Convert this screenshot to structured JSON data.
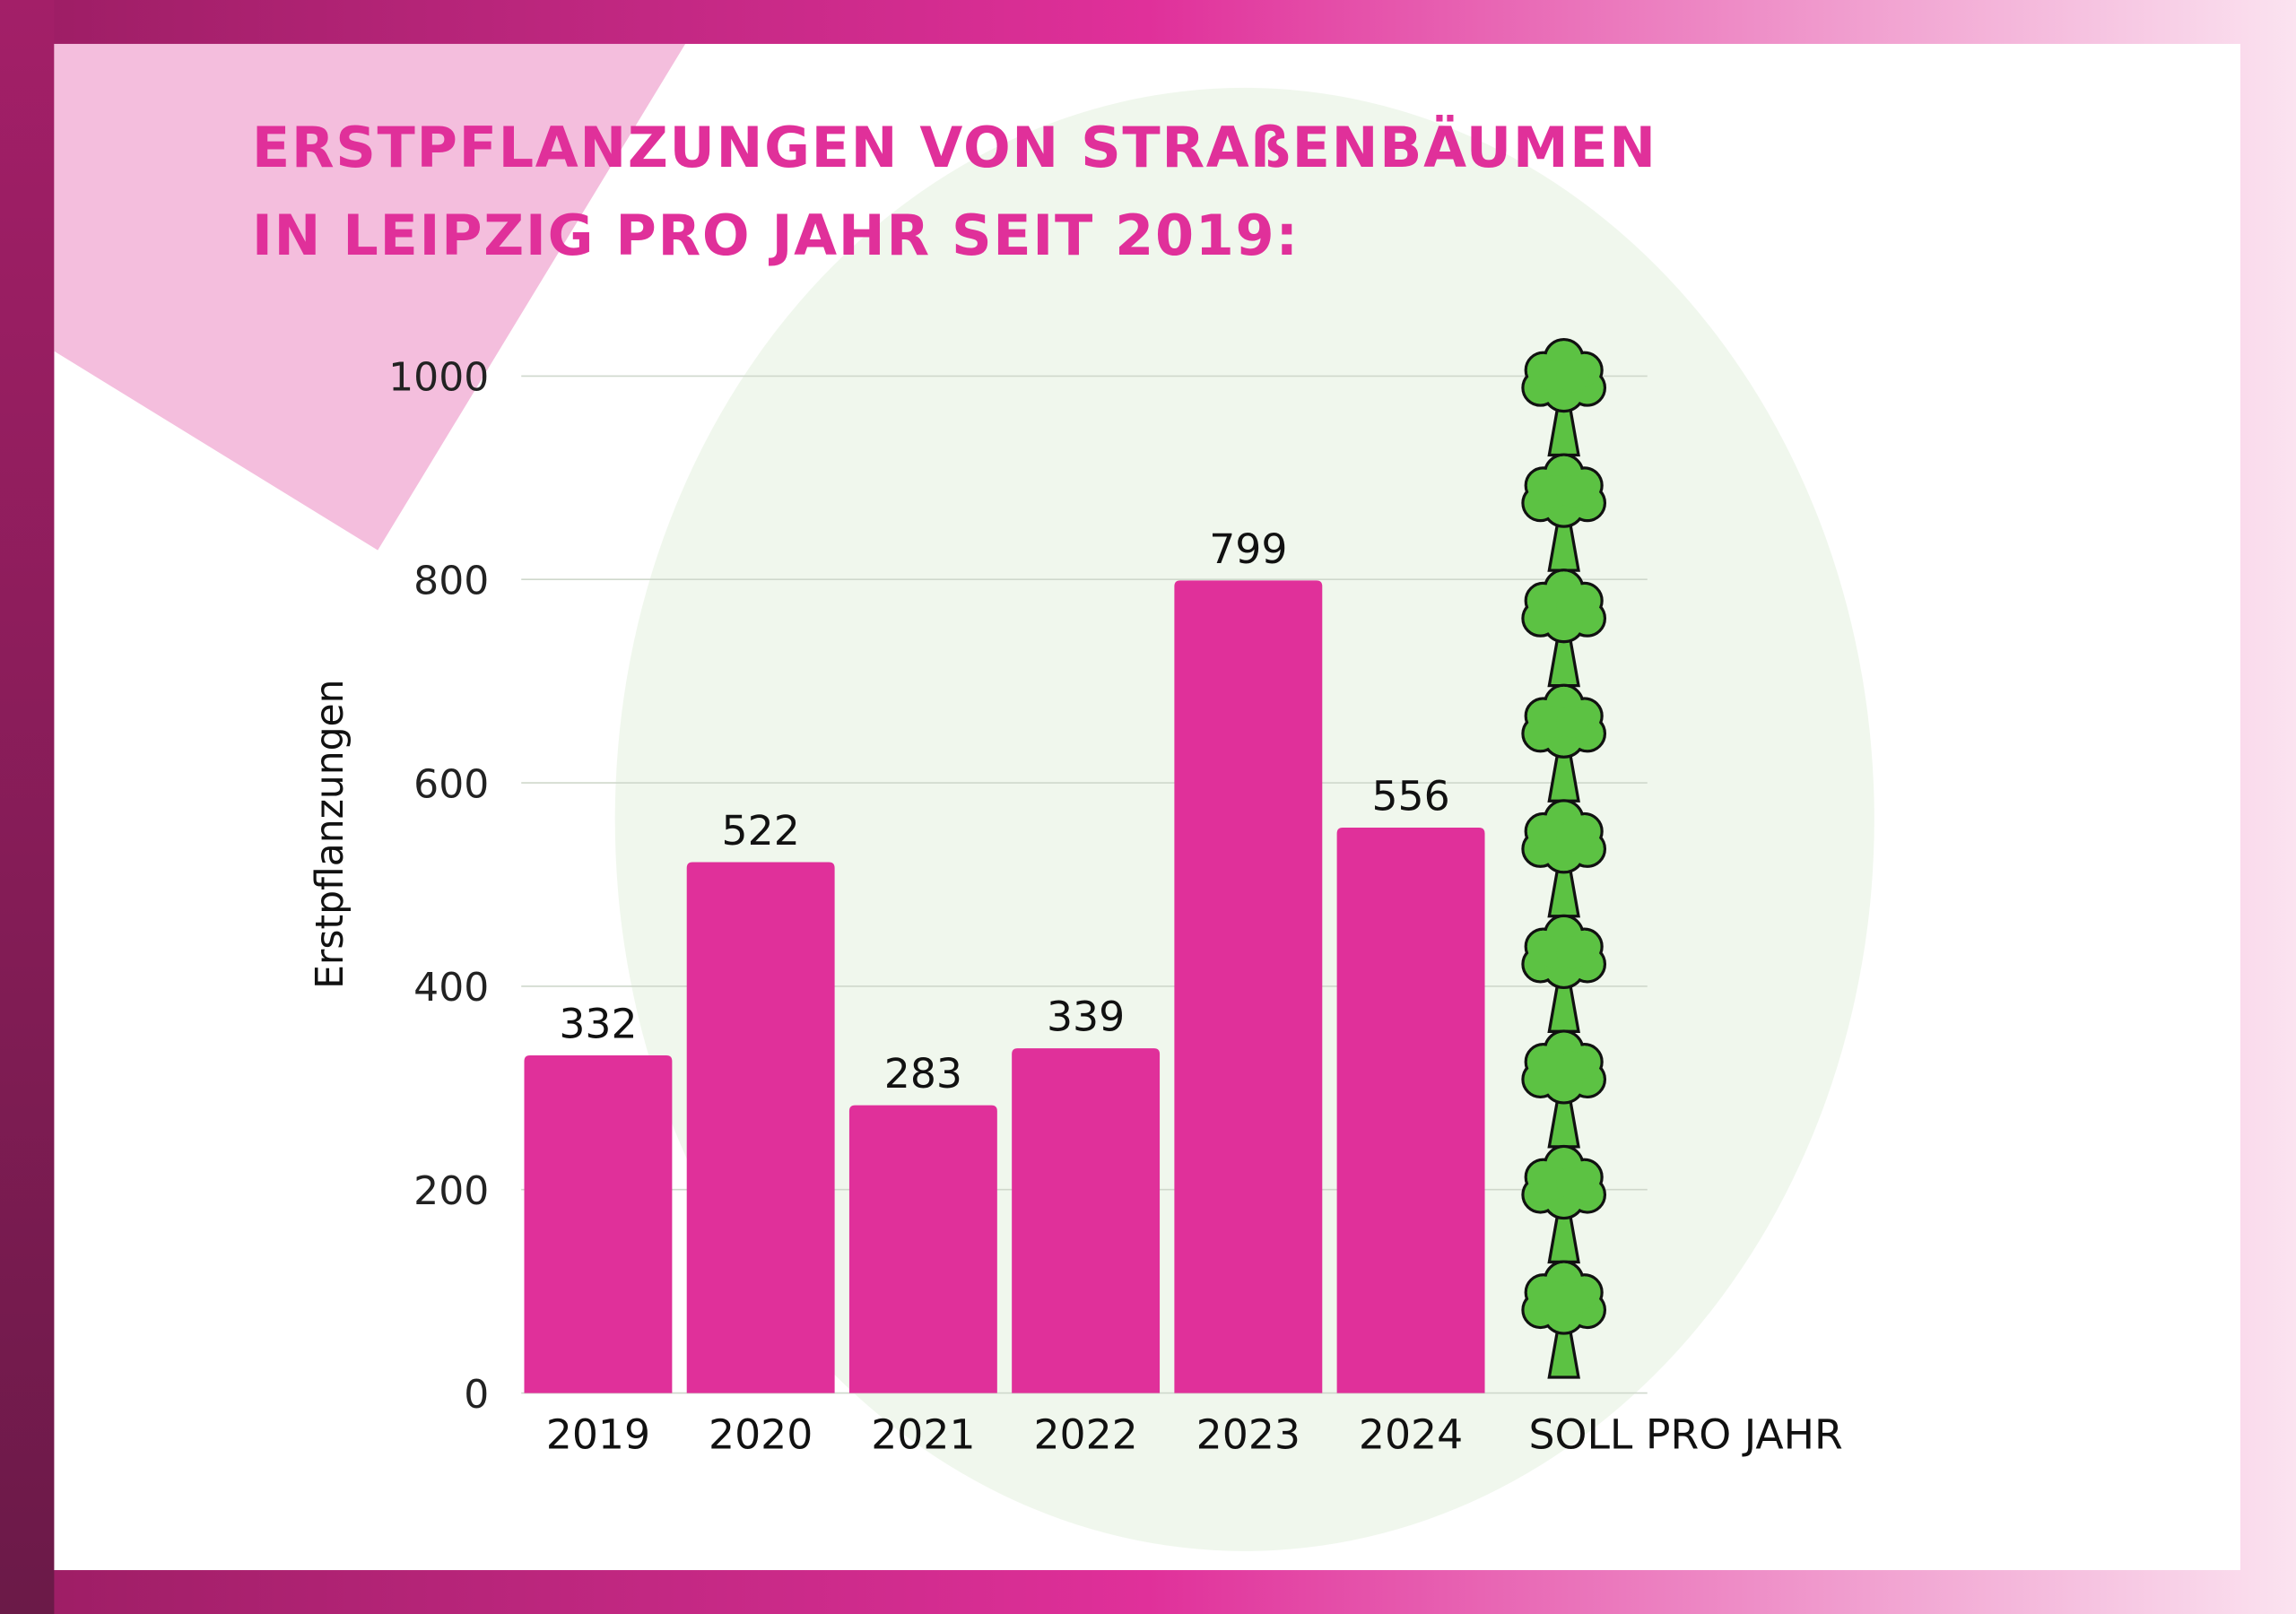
{
  "chart_data": {
    "type": "bar",
    "title": [
      "ERSTPFLANZUNGEN VON STRAßENBÄUMEN",
      "IN LEIPZIG PRO JAHR SEIT 2019:"
    ],
    "y_label": "Erstpflanzungen",
    "categories": [
      "2019",
      "2020",
      "2021",
      "2022",
      "2023",
      "2024"
    ],
    "values": [
      332,
      522,
      283,
      339,
      799,
      556
    ],
    "color": "#e0309a",
    "target": {
      "label": "SOLL PRO JAHR",
      "value": 1000,
      "color": "#5cc243"
    },
    "ylim": [
      0,
      1000
    ],
    "yticks": [
      0,
      200,
      400,
      600,
      800,
      1000
    ],
    "grid": true
  }
}
